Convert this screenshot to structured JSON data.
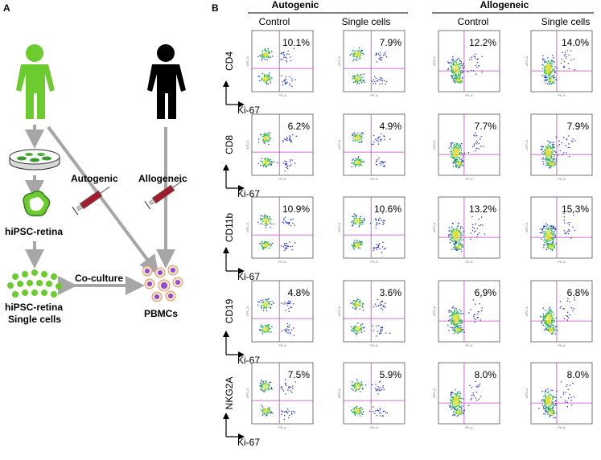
{
  "panel_a": {
    "label": "A",
    "autogenic": "Autogenic",
    "allogeneic": "Allogeneic",
    "hipsc_retina": "hiPSC-retina",
    "co_culture": "Co-culture",
    "single_cells_line1": "hiPSC-retina",
    "single_cells_line2": "Single cells",
    "pbmcs": "PBMCs"
  },
  "panel_b": {
    "label": "B",
    "group_autogenic": "Autogenic",
    "group_allogeneic": "Allogeneic",
    "col_control": "Control",
    "col_single_cells": "Single cells",
    "x_axis_label": "Ki-67",
    "rows": [
      {
        "marker": "CD4",
        "values": [
          "10.1%",
          "7.9%",
          "12.2%",
          "14.0%"
        ]
      },
      {
        "marker": "CD8",
        "values": [
          "6.2%",
          "4.9%",
          "7.7%",
          "7.9%"
        ]
      },
      {
        "marker": "CD11b",
        "values": [
          "10.9%",
          "10.6%",
          "13.2%",
          "15.3%"
        ]
      },
      {
        "marker": "CD19",
        "values": [
          "4.8%",
          "3.6%",
          "6.9%",
          "6.8%"
        ]
      },
      {
        "marker": "NKG2A",
        "values": [
          "7.5%",
          "5.9%",
          "8.0%",
          "8.0%"
        ]
      }
    ],
    "plot_axis_x": "PE-A",
    "plot_axis_y": "APC-A"
  },
  "colors": {
    "green": "#6ccb2f",
    "black": "#000000",
    "arrow_gray": "#a6a6a6",
    "gate_magenta": "#c840c8",
    "dot_blue": "#2233cc",
    "dot_green": "#33bb55",
    "dot_yellow": "#dddd22",
    "syringe_red": "#a01c2a"
  }
}
